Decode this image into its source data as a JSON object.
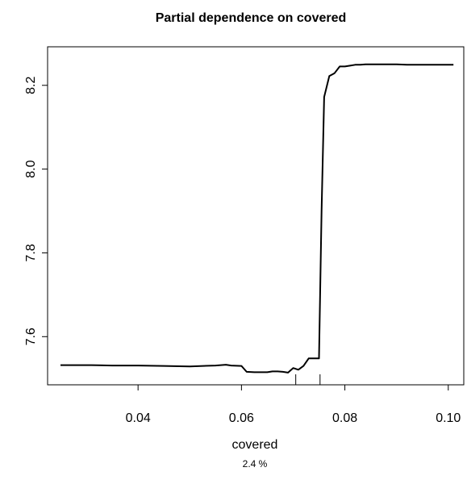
{
  "chart_data": {
    "type": "line",
    "title": "Partial dependence on covered",
    "xlabel": "covered",
    "ylabel": "",
    "subtitle": "2.4 %",
    "xlim": [
      0.0225,
      0.103
    ],
    "ylim": [
      7.485,
      8.292
    ],
    "xticks": [
      0.04,
      0.06,
      0.08,
      0.1
    ],
    "xtick_labels": [
      "0.04",
      "0.06",
      "0.08",
      "0.10"
    ],
    "yticks": [
      7.6,
      7.8,
      8.0,
      8.2
    ],
    "ytick_labels": [
      "7.6",
      "7.8",
      "8.0",
      "8.2"
    ],
    "grid": false,
    "series": [
      {
        "x": [
          0.025,
          0.031,
          0.035,
          0.04,
          0.045,
          0.05,
          0.055,
          0.057,
          0.058,
          0.06,
          0.061,
          0.0625,
          0.064,
          0.065,
          0.066,
          0.067,
          0.068,
          0.069,
          0.07,
          0.071,
          0.072,
          0.073,
          0.074,
          0.0745,
          0.075,
          0.0755,
          0.076,
          0.077,
          0.078,
          0.079,
          0.08,
          0.081,
          0.082,
          0.083,
          0.084,
          0.086,
          0.09,
          0.092,
          0.096,
          0.101
        ],
        "y": [
          7.532,
          7.532,
          7.531,
          7.531,
          7.53,
          7.529,
          7.531,
          7.533,
          7.531,
          7.53,
          7.516,
          7.515,
          7.515,
          7.515,
          7.517,
          7.517,
          7.516,
          7.514,
          7.525,
          7.521,
          7.53,
          7.548,
          7.548,
          7.548,
          7.548,
          7.9,
          8.172,
          8.222,
          8.229,
          8.245,
          8.245,
          8.247,
          8.249,
          8.249,
          8.25,
          8.25,
          8.25,
          8.249,
          8.249,
          8.249
        ]
      }
    ],
    "rug": [
      0.0705,
      0.0752
    ]
  }
}
